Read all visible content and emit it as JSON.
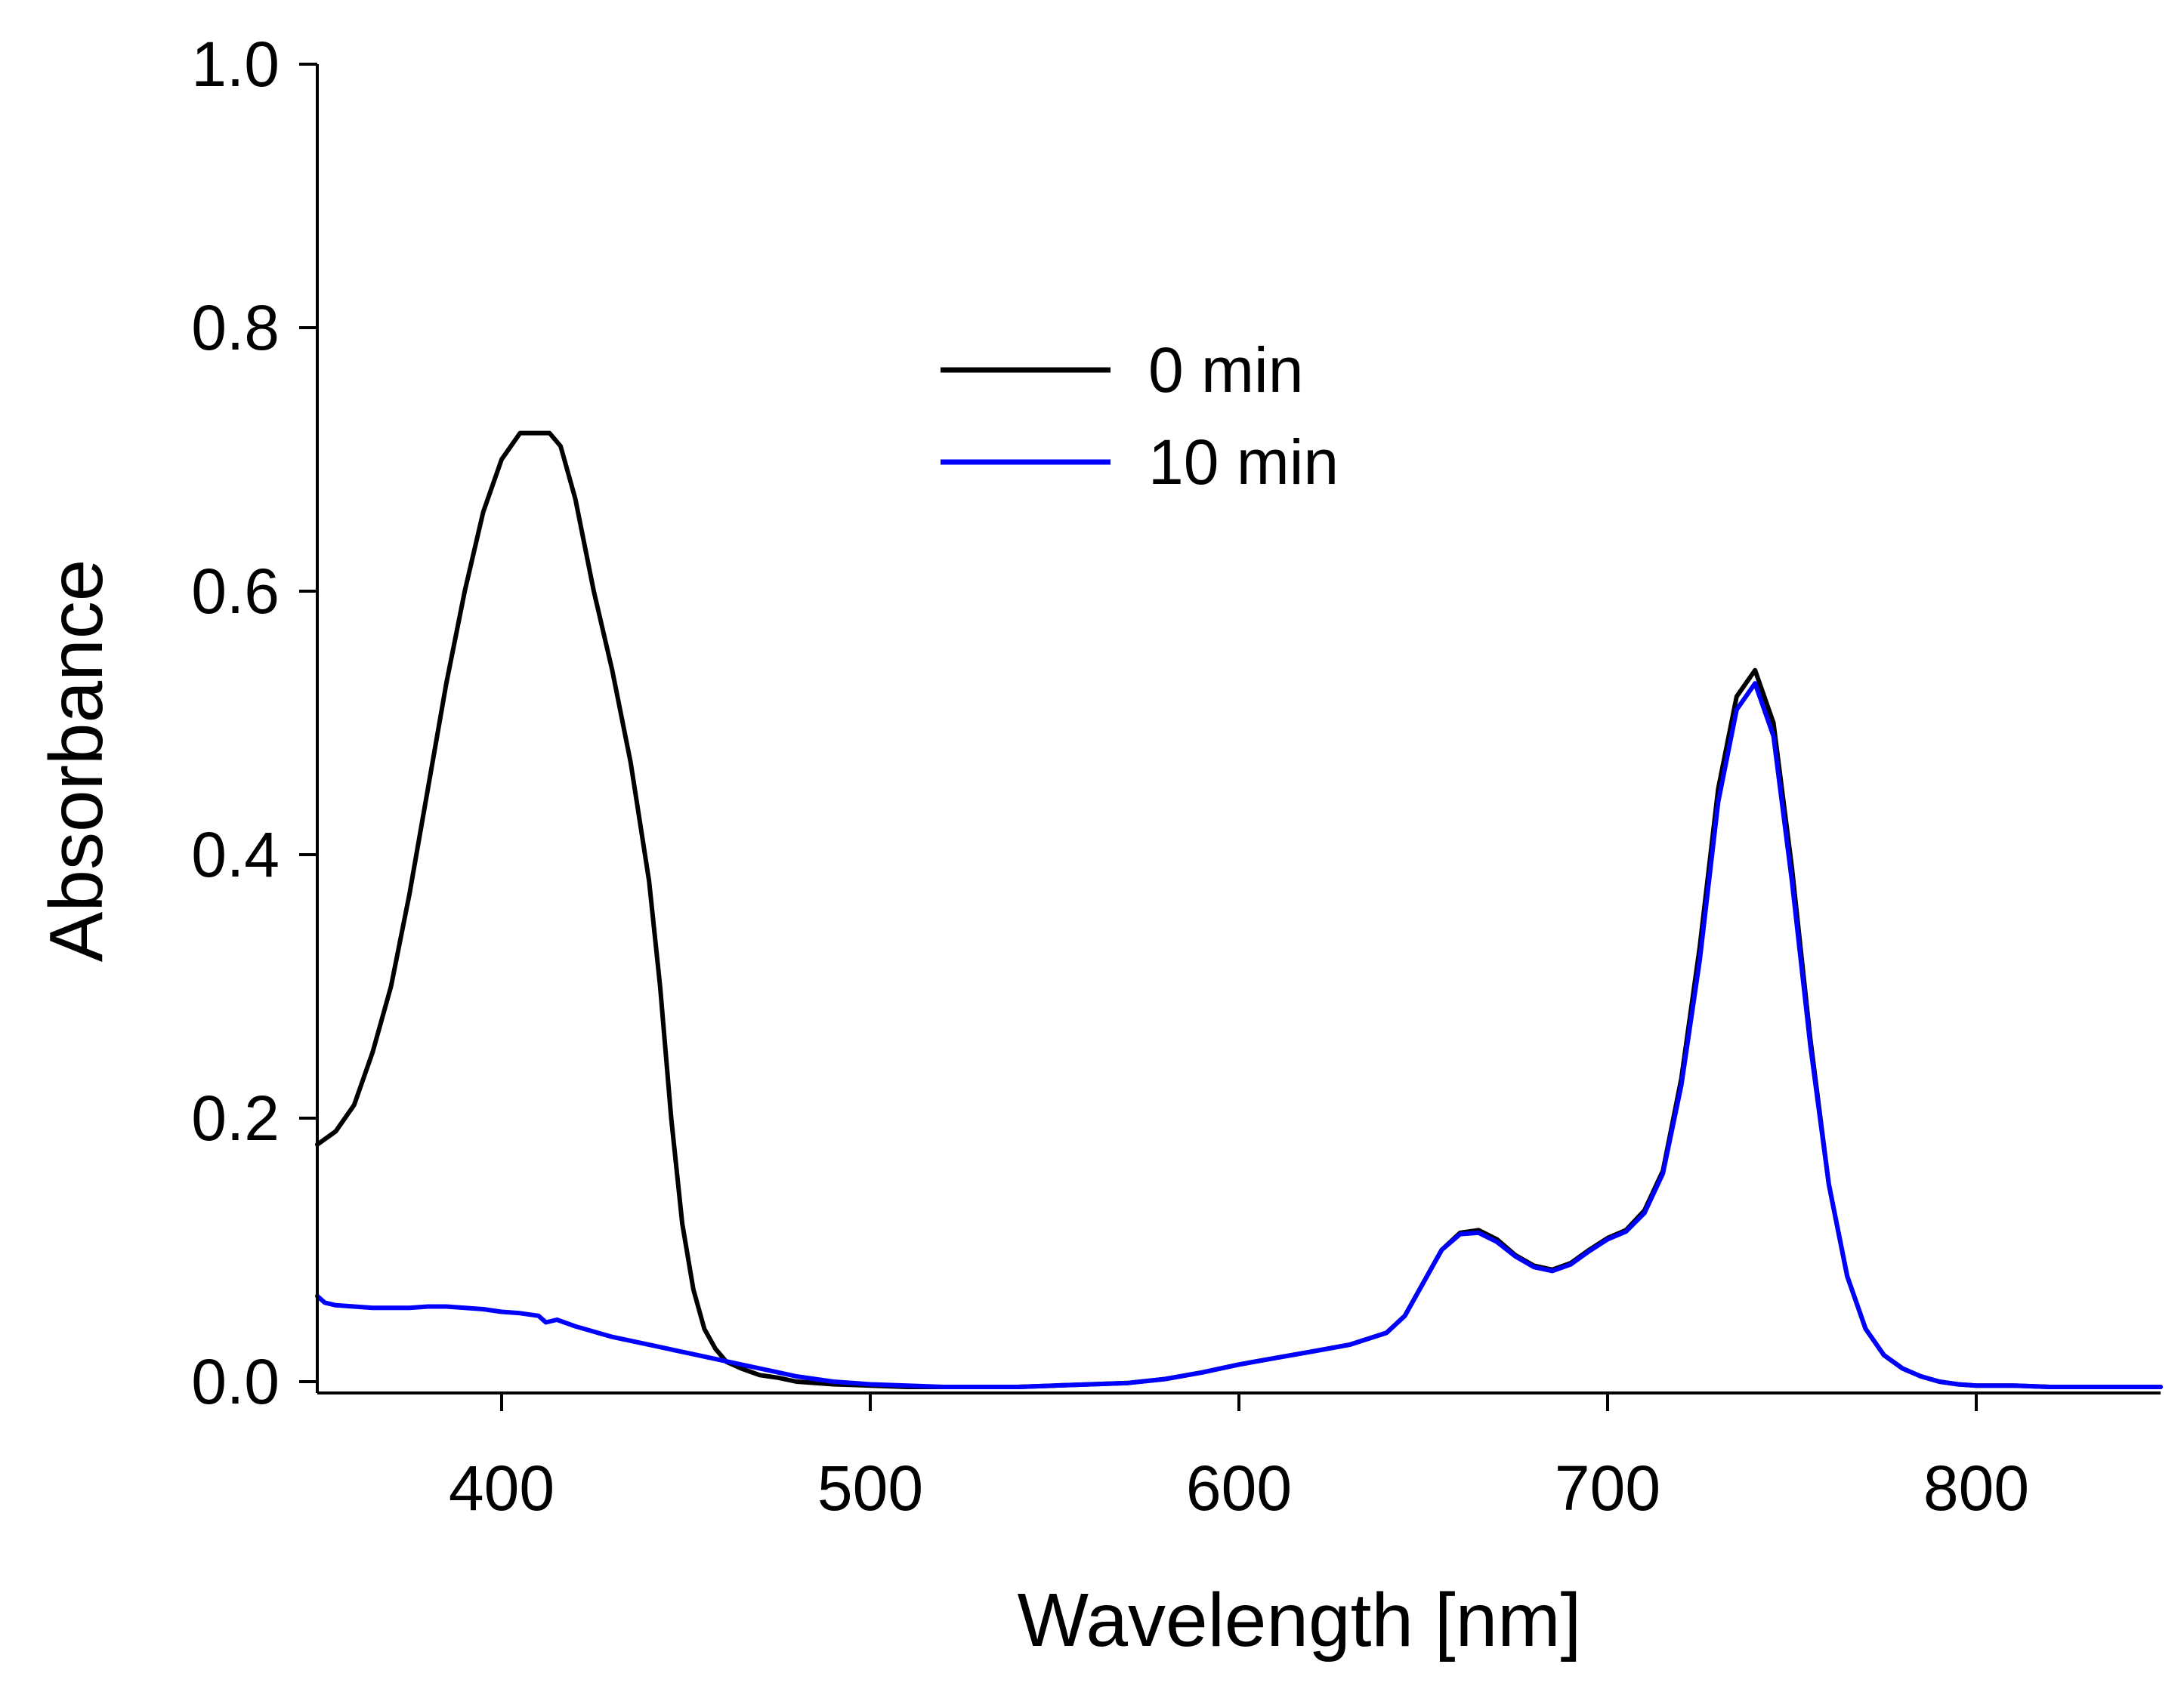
{
  "chart_data": {
    "type": "line",
    "title": "",
    "xlabel": "Wavelength [nm]",
    "ylabel": "Absorbance",
    "xlim": [
      350,
      850
    ],
    "ylim": [
      0.0,
      1.0
    ],
    "xticks": [
      400,
      500,
      600,
      700,
      800
    ],
    "xtick_labels": [
      "400",
      "500",
      "600",
      "700",
      "800"
    ],
    "yticks": [
      0.0,
      0.2,
      0.4,
      0.6,
      0.8,
      1.0
    ],
    "ytick_labels": [
      "0.0",
      "0.2",
      "0.4",
      "0.6",
      "0.8",
      "1.0"
    ],
    "grid": false,
    "legend_position": "top-center",
    "series": [
      {
        "name": "0 min",
        "color": "#000000",
        "x": [
          350,
          355,
          360,
          365,
          370,
          375,
          380,
          385,
          390,
          395,
          400,
          405,
          410,
          413,
          416,
          420,
          425,
          430,
          435,
          440,
          443,
          446,
          449,
          452,
          455,
          458,
          461,
          465,
          470,
          475,
          480,
          490,
          500,
          510,
          520,
          530,
          540,
          550,
          560,
          570,
          580,
          590,
          600,
          610,
          620,
          630,
          640,
          645,
          650,
          655,
          660,
          665,
          670,
          675,
          680,
          685,
          690,
          695,
          700,
          705,
          710,
          715,
          720,
          725,
          730,
          735,
          740,
          745,
          750,
          755,
          760,
          765,
          770,
          775,
          780,
          785,
          790,
          795,
          800,
          810,
          820,
          830,
          840,
          850
        ],
        "y": [
          0.18,
          0.19,
          0.21,
          0.25,
          0.3,
          0.37,
          0.45,
          0.53,
          0.6,
          0.66,
          0.7,
          0.72,
          0.72,
          0.72,
          0.71,
          0.67,
          0.6,
          0.54,
          0.47,
          0.38,
          0.3,
          0.2,
          0.12,
          0.07,
          0.04,
          0.025,
          0.015,
          0.01,
          0.005,
          0.003,
          0.0,
          -0.002,
          -0.003,
          -0.004,
          -0.004,
          -0.004,
          -0.004,
          -0.003,
          -0.002,
          -0.001,
          0.002,
          0.007,
          0.013,
          0.018,
          0.023,
          0.028,
          0.037,
          0.05,
          0.075,
          0.1,
          0.113,
          0.115,
          0.108,
          0.096,
          0.088,
          0.085,
          0.09,
          0.1,
          0.109,
          0.115,
          0.13,
          0.16,
          0.23,
          0.33,
          0.45,
          0.52,
          0.54,
          0.5,
          0.39,
          0.26,
          0.15,
          0.08,
          0.04,
          0.02,
          0.01,
          0.004,
          0.0,
          -0.002,
          -0.003,
          -0.003,
          -0.004,
          -0.004,
          -0.004,
          -0.004
        ]
      },
      {
        "name": "10 min",
        "color": "#0000ff",
        "x": [
          350,
          352,
          355,
          360,
          365,
          370,
          375,
          380,
          385,
          390,
          395,
          400,
          405,
          410,
          412,
          415,
          420,
          425,
          430,
          440,
          450,
          460,
          470,
          480,
          490,
          500,
          510,
          520,
          530,
          540,
          550,
          560,
          570,
          580,
          590,
          600,
          610,
          620,
          630,
          640,
          645,
          650,
          655,
          660,
          665,
          670,
          675,
          680,
          685,
          690,
          695,
          700,
          705,
          710,
          715,
          720,
          725,
          730,
          735,
          740,
          745,
          750,
          755,
          760,
          765,
          770,
          775,
          780,
          785,
          790,
          795,
          800,
          810,
          820,
          830,
          840,
          850
        ],
        "y": [
          0.065,
          0.06,
          0.058,
          0.057,
          0.056,
          0.056,
          0.056,
          0.057,
          0.057,
          0.056,
          0.055,
          0.053,
          0.052,
          0.05,
          0.045,
          0.047,
          0.042,
          0.038,
          0.034,
          0.028,
          0.022,
          0.016,
          0.01,
          0.004,
          0.0,
          -0.002,
          -0.003,
          -0.004,
          -0.004,
          -0.004,
          -0.003,
          -0.002,
          -0.001,
          0.002,
          0.007,
          0.013,
          0.018,
          0.023,
          0.028,
          0.037,
          0.05,
          0.075,
          0.1,
          0.112,
          0.113,
          0.106,
          0.095,
          0.087,
          0.084,
          0.089,
          0.099,
          0.108,
          0.114,
          0.128,
          0.158,
          0.225,
          0.32,
          0.44,
          0.51,
          0.53,
          0.49,
          0.38,
          0.255,
          0.15,
          0.08,
          0.04,
          0.02,
          0.01,
          0.004,
          0.0,
          -0.002,
          -0.003,
          -0.003,
          -0.004,
          -0.004,
          -0.004,
          -0.004
        ]
      }
    ]
  }
}
